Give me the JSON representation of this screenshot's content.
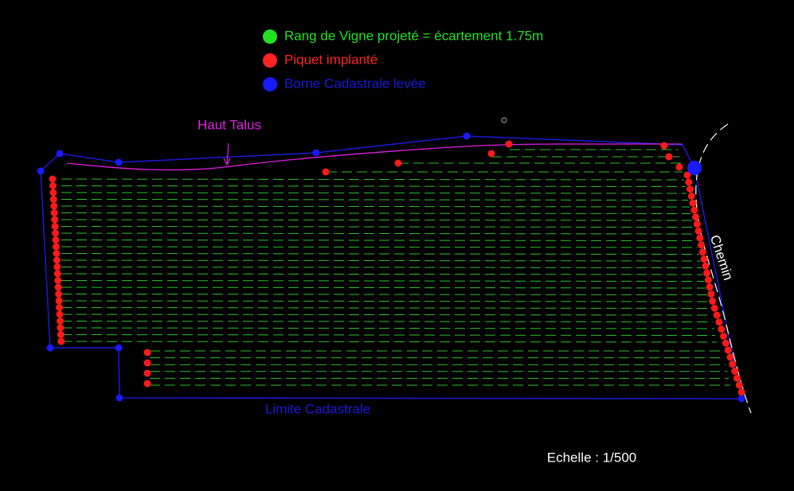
{
  "legend": [
    {
      "label": "Rang de Vigne projeté = écartement 1.75m",
      "color": "#22e022"
    },
    {
      "label": "Piquet implanté",
      "color": "#ff2222"
    },
    {
      "label": "Borne Cadastrale levée",
      "color": "#1a1aff"
    }
  ],
  "labels": {
    "haut_talus": "Haut Talus",
    "chemin": "Chemin",
    "limite": "Limite Cadastrale"
  },
  "scale": "Echelle : 1/500"
}
